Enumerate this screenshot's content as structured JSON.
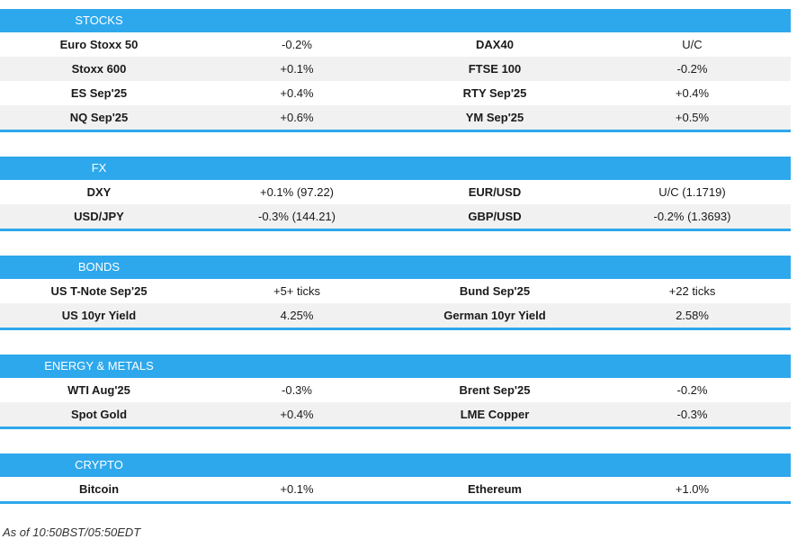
{
  "sections": [
    {
      "title": "STOCKS",
      "rows": [
        [
          "Euro Stoxx 50",
          "-0.2%",
          "DAX40",
          "U/C"
        ],
        [
          "Stoxx 600",
          "+0.1%",
          "FTSE 100",
          "-0.2%"
        ],
        [
          "ES Sep'25",
          "+0.4%",
          "RTY Sep'25",
          "+0.4%"
        ],
        [
          "NQ Sep'25",
          "+0.6%",
          "YM Sep'25",
          "+0.5%"
        ]
      ]
    },
    {
      "title": "FX",
      "rows": [
        [
          "DXY",
          "+0.1% (97.22)",
          "EUR/USD",
          "U/C (1.1719)"
        ],
        [
          "USD/JPY",
          "-0.3% (144.21)",
          "GBP/USD",
          "-0.2% (1.3693)"
        ]
      ]
    },
    {
      "title": "BONDS",
      "rows": [
        [
          "US T-Note Sep'25",
          "+5+ ticks",
          "Bund Sep'25",
          "+22 ticks"
        ],
        [
          "US 10yr Yield",
          "4.25%",
          "German 10yr Yield",
          "2.58%"
        ]
      ]
    },
    {
      "title": "ENERGY & METALS",
      "rows": [
        [
          "WTI Aug'25",
          "-0.3%",
          "Brent Sep'25",
          "-0.2%"
        ],
        [
          "Spot Gold",
          "+0.4%",
          "LME Copper",
          "-0.3%"
        ]
      ]
    },
    {
      "title": "CRYPTO",
      "rows": [
        [
          "Bitcoin",
          "+0.1%",
          "Ethereum",
          "+1.0%"
        ]
      ]
    }
  ],
  "footer": "As of 10:50BST/05:50EDT"
}
